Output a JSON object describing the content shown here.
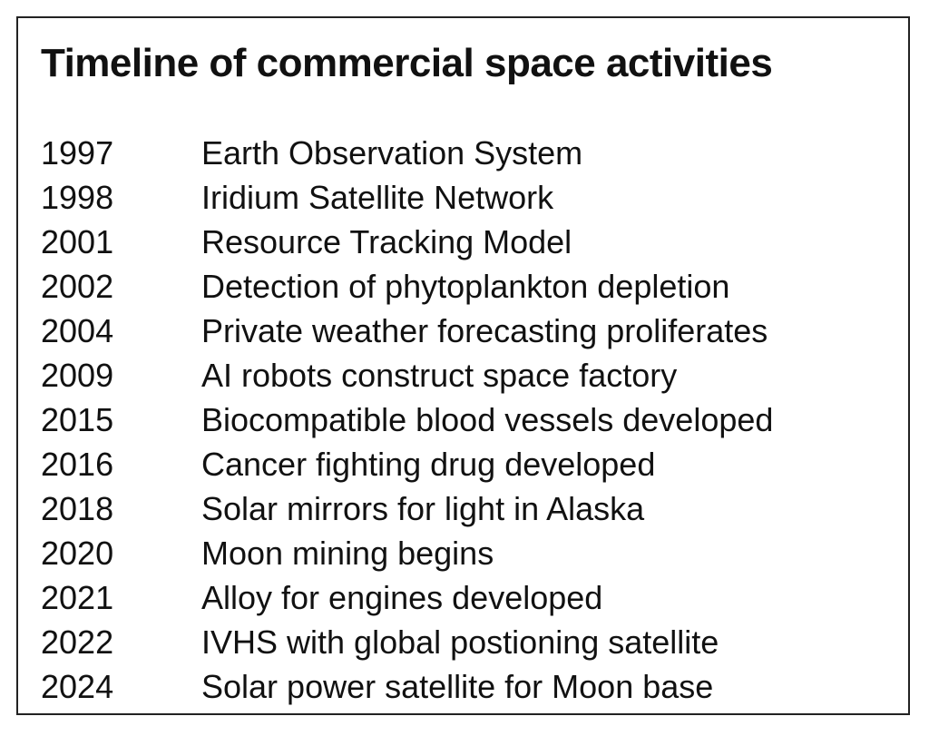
{
  "title": "Timeline of commercial space activities",
  "table": {
    "rows": [
      [
        "1997",
        "Earth Observation System"
      ],
      [
        "1998",
        "Iridium Satellite Network"
      ],
      [
        "2001",
        "Resource Tracking Model"
      ],
      [
        "2002",
        "Detection of phytoplankton depletion"
      ],
      [
        "2004",
        "Private weather forecasting proliferates"
      ],
      [
        "2009",
        "AI robots construct space factory"
      ],
      [
        "2015",
        "Biocompatible blood vessels developed"
      ],
      [
        "2016",
        "Cancer fighting drug developed"
      ],
      [
        "2018",
        "Solar mirrors for light in Alaska"
      ],
      [
        "2020",
        "Moon mining begins"
      ],
      [
        "2021",
        "Alloy for engines developed"
      ],
      [
        "2022",
        "IVHS with global postioning satellite"
      ],
      [
        "2024",
        "Solar power satellite for Moon base"
      ]
    ]
  }
}
